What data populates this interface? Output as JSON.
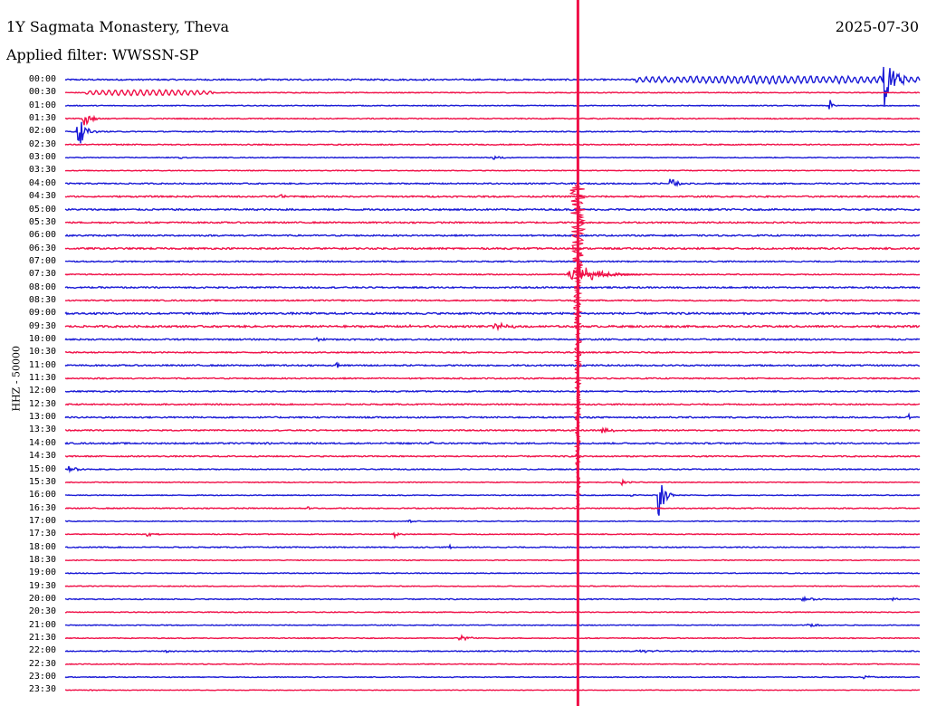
{
  "header": {
    "title": "1Y Sagmata Monastery, Theva",
    "date": "2025-07-30",
    "filter": "Applied filter: WWSSN-SP"
  },
  "chart_data": {
    "type": "line",
    "title": "1Y Sagmata Monastery, Theva",
    "subtitle": "Applied filter: WWSSN-SP",
    "date": "2025-07-30",
    "ylabel": "HHZ - 50000",
    "xlabel": "",
    "x_range_minutes": [
      0,
      30
    ],
    "colors": {
      "odd_rows": "#1a1ad6",
      "even_rows": "#f01048"
    },
    "row_labels": [
      "00:00",
      "00:30",
      "01:00",
      "01:30",
      "02:00",
      "02:30",
      "03:00",
      "03:30",
      "04:00",
      "04:30",
      "05:00",
      "05:30",
      "06:00",
      "06:30",
      "07:00",
      "07:30",
      "08:00",
      "08:30",
      "09:00",
      "09:30",
      "10:00",
      "10:30",
      "11:00",
      "11:30",
      "12:00",
      "12:30",
      "13:00",
      "13:30",
      "14:00",
      "14:30",
      "15:00",
      "15:30",
      "16:00",
      "16:30",
      "17:00",
      "17:30",
      "18:00",
      "18:30",
      "19:00",
      "19:30",
      "20:00",
      "20:30",
      "21:00",
      "21:30",
      "22:00",
      "22:30",
      "23:00",
      "23:30"
    ],
    "noise_levels": [
      0.35,
      0.2,
      0.2,
      0.25,
      0.25,
      0.25,
      0.2,
      0.2,
      0.3,
      0.35,
      0.4,
      0.35,
      0.35,
      0.4,
      0.3,
      0.25,
      0.35,
      0.3,
      0.45,
      0.45,
      0.35,
      0.3,
      0.35,
      0.3,
      0.3,
      0.3,
      0.35,
      0.3,
      0.35,
      0.3,
      0.25,
      0.2,
      0.2,
      0.25,
      0.2,
      0.2,
      0.25,
      0.2,
      0.2,
      0.2,
      0.25,
      0.2,
      0.2,
      0.2,
      0.25,
      0.2,
      0.2,
      0.15
    ],
    "events": [
      {
        "row": 0,
        "t": 20.0,
        "amp": 1.3,
        "dur": 10.0,
        "kind": "wave"
      },
      {
        "row": 0,
        "t": 28.7,
        "amp": 10.0,
        "dur": 1.2,
        "kind": "burst"
      },
      {
        "row": 1,
        "t": 0.7,
        "amp": 1.0,
        "dur": 4.5,
        "kind": "wave"
      },
      {
        "row": 2,
        "t": 26.8,
        "amp": 2.5,
        "dur": 0.4,
        "kind": "burst"
      },
      {
        "row": 3,
        "t": 0.6,
        "amp": 4.0,
        "dur": 0.8,
        "kind": "burst"
      },
      {
        "row": 4,
        "t": 0.4,
        "amp": 6.5,
        "dur": 0.8,
        "kind": "burst"
      },
      {
        "row": 6,
        "t": 4.0,
        "amp": 1.0,
        "dur": 0.4,
        "kind": "burst"
      },
      {
        "row": 6,
        "t": 15.0,
        "amp": 0.8,
        "dur": 0.8,
        "kind": "burst"
      },
      {
        "row": 6,
        "t": 18.0,
        "amp": 60.0,
        "dur": 0.3,
        "kind": "spike"
      },
      {
        "row": 8,
        "t": 21.2,
        "amp": 2.0,
        "dur": 0.8,
        "kind": "burst"
      },
      {
        "row": 9,
        "t": 7.5,
        "amp": 0.8,
        "dur": 0.8,
        "kind": "burst"
      },
      {
        "row": 15,
        "t": 17.6,
        "amp": 2.0,
        "dur": 2.2,
        "kind": "burst"
      },
      {
        "row": 19,
        "t": 15.0,
        "amp": 1.0,
        "dur": 2.0,
        "kind": "burst"
      },
      {
        "row": 19,
        "t": 12.0,
        "amp": 0.9,
        "dur": 0.6,
        "kind": "burst"
      },
      {
        "row": 20,
        "t": 8.8,
        "amp": 0.8,
        "dur": 1.0,
        "kind": "burst"
      },
      {
        "row": 22,
        "t": 9.5,
        "amp": 1.4,
        "dur": 0.3,
        "kind": "burst"
      },
      {
        "row": 26,
        "t": 29.6,
        "amp": 1.3,
        "dur": 0.3,
        "kind": "burst"
      },
      {
        "row": 27,
        "t": 18.8,
        "amp": 1.0,
        "dur": 1.2,
        "kind": "burst"
      },
      {
        "row": 28,
        "t": 7.0,
        "amp": 0.9,
        "dur": 0.5,
        "kind": "burst"
      },
      {
        "row": 28,
        "t": 12.8,
        "amp": 0.6,
        "dur": 0.4,
        "kind": "burst"
      },
      {
        "row": 30,
        "t": 0.1,
        "amp": 1.0,
        "dur": 1.0,
        "kind": "burst"
      },
      {
        "row": 31,
        "t": 19.5,
        "amp": 1.0,
        "dur": 0.8,
        "kind": "burst"
      },
      {
        "row": 32,
        "t": 19.8,
        "amp": 0.6,
        "dur": 0.8,
        "kind": "burst"
      },
      {
        "row": 32,
        "t": 20.8,
        "amp": 11.0,
        "dur": 0.6,
        "kind": "burst"
      },
      {
        "row": 33,
        "t": 8.5,
        "amp": 0.6,
        "dur": 0.5,
        "kind": "burst"
      },
      {
        "row": 34,
        "t": 12.0,
        "amp": 0.5,
        "dur": 0.7,
        "kind": "burst"
      },
      {
        "row": 35,
        "t": 2.8,
        "amp": 0.8,
        "dur": 1.0,
        "kind": "burst"
      },
      {
        "row": 35,
        "t": 11.5,
        "amp": 1.5,
        "dur": 0.5,
        "kind": "burst"
      },
      {
        "row": 36,
        "t": 13.5,
        "amp": 1.2,
        "dur": 0.4,
        "kind": "burst"
      },
      {
        "row": 43,
        "t": 13.8,
        "amp": 1.5,
        "dur": 1.0,
        "kind": "burst"
      },
      {
        "row": 40,
        "t": 25.8,
        "amp": 0.5,
        "dur": 2.0,
        "kind": "burst"
      },
      {
        "row": 40,
        "t": 29.0,
        "amp": 0.6,
        "dur": 1.0,
        "kind": "burst"
      },
      {
        "row": 42,
        "t": 26.0,
        "amp": 0.5,
        "dur": 2.5,
        "kind": "burst"
      },
      {
        "row": 44,
        "t": 3.5,
        "amp": 0.5,
        "dur": 1.0,
        "kind": "burst"
      },
      {
        "row": 44,
        "t": 20.0,
        "amp": 0.5,
        "dur": 2.5,
        "kind": "burst"
      },
      {
        "row": 46,
        "t": 28.0,
        "amp": 0.5,
        "dur": 1.0,
        "kind": "burst"
      },
      {
        "row": 47,
        "t": 0.8,
        "amp": 0.3,
        "dur": 1.5,
        "kind": "burst"
      }
    ]
  }
}
